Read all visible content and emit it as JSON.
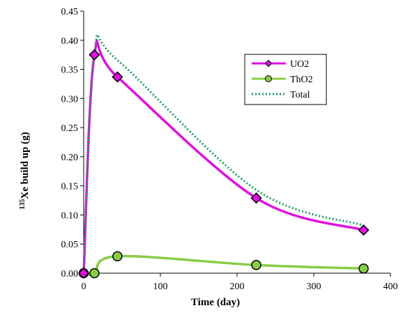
{
  "colors": {
    "uo2": "#e010e0",
    "tho2": "#88cc44",
    "total": "#1a9c5c",
    "axis": "#000000",
    "background": "#ffffff"
  },
  "chart_data": {
    "type": "line",
    "title": "",
    "xlabel": "Time (day)",
    "ylabel_sup": "135",
    "ylabel_main": "Xe build up (g)",
    "xlim": [
      0,
      400
    ],
    "ylim": [
      0,
      0.45
    ],
    "xticks": [
      "0",
      "100",
      "200",
      "300",
      "400"
    ],
    "yticks": [
      "0.00",
      "0.05",
      "0.10",
      "0.15",
      "0.20",
      "0.25",
      "0.30",
      "0.35",
      "0.40",
      "0.45"
    ],
    "xtick_values": [
      0,
      100,
      200,
      300,
      400
    ],
    "ytick_values": [
      0,
      0.05,
      0.1,
      0.15,
      0.2,
      0.25,
      0.3,
      0.35,
      0.4,
      0.45
    ],
    "grid": false,
    "legend_position": "top-right",
    "series": [
      {
        "name": "UO2",
        "marker": "diamond",
        "x": [
          0,
          14,
          44,
          225,
          365
        ],
        "y": [
          0,
          0.375,
          0.337,
          0.129,
          0.074
        ]
      },
      {
        "name": "ThO2",
        "marker": "circle",
        "x": [
          0,
          14,
          44,
          225,
          365
        ],
        "y": [
          0,
          0,
          0.029,
          0.014,
          0.008
        ]
      },
      {
        "name": "Total",
        "marker": "none",
        "style": "dotted",
        "x": [
          0,
          14,
          44,
          225,
          365
        ],
        "y": [
          0,
          0.375,
          0.366,
          0.143,
          0.082
        ]
      }
    ]
  }
}
